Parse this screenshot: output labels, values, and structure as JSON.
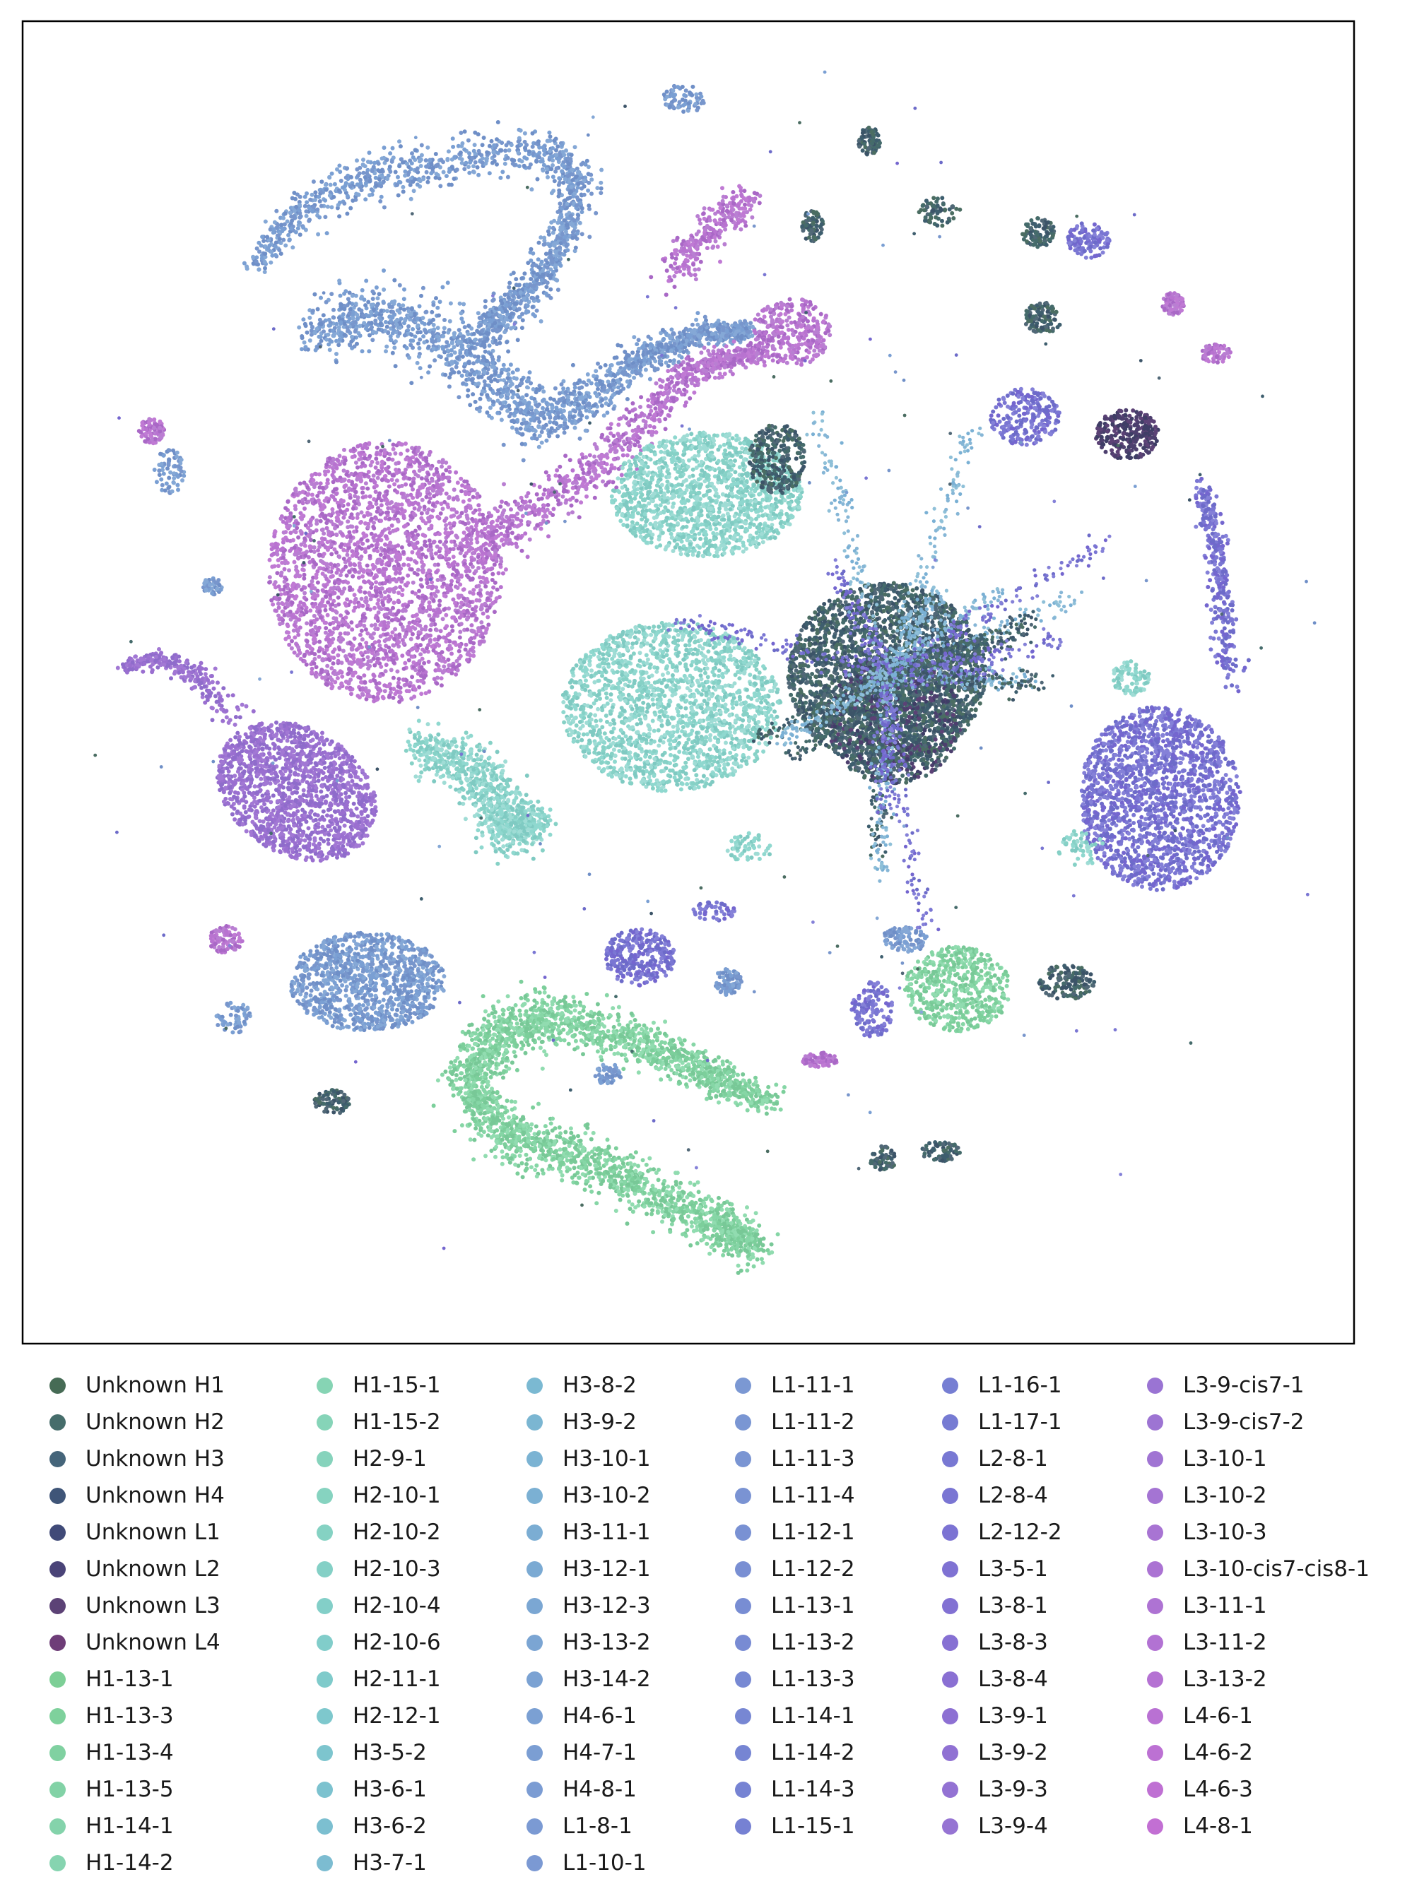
{
  "chart_data": {
    "type": "scatter",
    "title": "",
    "xlabel": "",
    "ylabel": "",
    "axes_ticks": "hidden",
    "grid": false,
    "legend_position": "bottom",
    "legend_columns": 6,
    "series": [
      {
        "name": "Unknown H1",
        "color": "#466b55"
      },
      {
        "name": "Unknown H2",
        "color": "#466d6b"
      },
      {
        "name": "Unknown H3",
        "color": "#45657a"
      },
      {
        "name": "Unknown H4",
        "color": "#3f5578"
      },
      {
        "name": "Unknown L1",
        "color": "#404a78"
      },
      {
        "name": "Unknown L2",
        "color": "#4a4478"
      },
      {
        "name": "Unknown L3",
        "color": "#5c4276"
      },
      {
        "name": "Unknown L4",
        "color": "#6e3d78"
      },
      {
        "name": "H1-13-1",
        "color": "#7dcf96"
      },
      {
        "name": "H1-13-3",
        "color": "#7ed19c"
      },
      {
        "name": "H1-13-4",
        "color": "#80d1a1"
      },
      {
        "name": "H1-13-5",
        "color": "#82d2a6"
      },
      {
        "name": "H1-14-1",
        "color": "#84d3ab"
      },
      {
        "name": "H1-14-2",
        "color": "#86d4b0"
      },
      {
        "name": "H1-15-1",
        "color": "#86d4b4"
      },
      {
        "name": "H1-15-2",
        "color": "#86d4b8"
      },
      {
        "name": "H2-9-1",
        "color": "#86d3bc"
      },
      {
        "name": "H2-10-1",
        "color": "#86d3c0"
      },
      {
        "name": "H2-10-2",
        "color": "#85d2c3"
      },
      {
        "name": "H2-10-3",
        "color": "#84d0c6"
      },
      {
        "name": "H2-10-4",
        "color": "#83cfc8"
      },
      {
        "name": "H2-10-6",
        "color": "#81cdca"
      },
      {
        "name": "H2-11-1",
        "color": "#7fcbcb"
      },
      {
        "name": "H2-12-1",
        "color": "#7ec8cd"
      },
      {
        "name": "H3-5-2",
        "color": "#7dc5ce"
      },
      {
        "name": "H3-6-1",
        "color": "#7cc2cf"
      },
      {
        "name": "H3-6-2",
        "color": "#7cbfd0"
      },
      {
        "name": "H3-7-1",
        "color": "#7cbcd1"
      },
      {
        "name": "H3-8-2",
        "color": "#7bb9d2"
      },
      {
        "name": "H3-9-2",
        "color": "#7bb6d2"
      },
      {
        "name": "H3-10-1",
        "color": "#7bb3d3"
      },
      {
        "name": "H3-10-2",
        "color": "#7bb0d3"
      },
      {
        "name": "H3-11-1",
        "color": "#7badd3"
      },
      {
        "name": "H3-12-1",
        "color": "#7baad3"
      },
      {
        "name": "H3-12-3",
        "color": "#7ba7d3"
      },
      {
        "name": "H3-13-2",
        "color": "#7ba5d3"
      },
      {
        "name": "H3-14-2",
        "color": "#7ba2d3"
      },
      {
        "name": "H4-6-1",
        "color": "#7ba0d3"
      },
      {
        "name": "H4-7-1",
        "color": "#7b9ed3"
      },
      {
        "name": "H4-8-1",
        "color": "#7b9cd3"
      },
      {
        "name": "L1-8-1",
        "color": "#7b9ad3"
      },
      {
        "name": "L1-10-1",
        "color": "#7b99d3"
      },
      {
        "name": "L1-11-1",
        "color": "#7b98d3"
      },
      {
        "name": "L1-11-2",
        "color": "#7a96d3"
      },
      {
        "name": "L1-11-3",
        "color": "#7a95d3"
      },
      {
        "name": "L1-11-4",
        "color": "#7a93d3"
      },
      {
        "name": "L1-12-1",
        "color": "#7991d3"
      },
      {
        "name": "L1-12-2",
        "color": "#798fd3"
      },
      {
        "name": "L1-13-1",
        "color": "#788dd3"
      },
      {
        "name": "L1-13-2",
        "color": "#788bd3"
      },
      {
        "name": "L1-13-3",
        "color": "#7789d3"
      },
      {
        "name": "L1-14-1",
        "color": "#7787d3"
      },
      {
        "name": "L1-14-2",
        "color": "#7685d3"
      },
      {
        "name": "L1-14-3",
        "color": "#7683d3"
      },
      {
        "name": "L1-15-1",
        "color": "#7681d3"
      },
      {
        "name": "L1-16-1",
        "color": "#767ed3"
      },
      {
        "name": "L1-17-1",
        "color": "#767bd3"
      },
      {
        "name": "L2-8-1",
        "color": "#7878d3"
      },
      {
        "name": "L2-8-4",
        "color": "#7a75d3"
      },
      {
        "name": "L2-12-2",
        "color": "#7c73d3"
      },
      {
        "name": "L3-5-1",
        "color": "#7f72d3"
      },
      {
        "name": "L3-8-1",
        "color": "#8271d3"
      },
      {
        "name": "L3-8-3",
        "color": "#8670d3"
      },
      {
        "name": "L3-8-4",
        "color": "#8a70d3"
      },
      {
        "name": "L3-9-1",
        "color": "#8d70d3"
      },
      {
        "name": "L3-9-2",
        "color": "#9071d3"
      },
      {
        "name": "L3-9-3",
        "color": "#9372d3"
      },
      {
        "name": "L3-9-4",
        "color": "#9674d3"
      },
      {
        "name": "L3-9-cis7-1",
        "color": "#9a74d3"
      },
      {
        "name": "L3-9-cis7-2",
        "color": "#9d74d3"
      },
      {
        "name": "L3-10-1",
        "color": "#a074d3"
      },
      {
        "name": "L3-10-2",
        "color": "#a474d3"
      },
      {
        "name": "L3-10-3",
        "color": "#a874d3"
      },
      {
        "name": "L3-10-cis7-cis8-1",
        "color": "#ab73d3"
      },
      {
        "name": "L3-11-1",
        "color": "#ae73d3"
      },
      {
        "name": "L3-11-2",
        "color": "#b272d3"
      },
      {
        "name": "L3-13-2",
        "color": "#b572d3"
      },
      {
        "name": "L4-6-1",
        "color": "#b971d3"
      },
      {
        "name": "L4-6-2",
        "color": "#bc71d3"
      },
      {
        "name": "L4-6-3",
        "color": "#bf70d3"
      },
      {
        "name": "L4-8-1",
        "color": "#c26fd3"
      }
    ]
  }
}
